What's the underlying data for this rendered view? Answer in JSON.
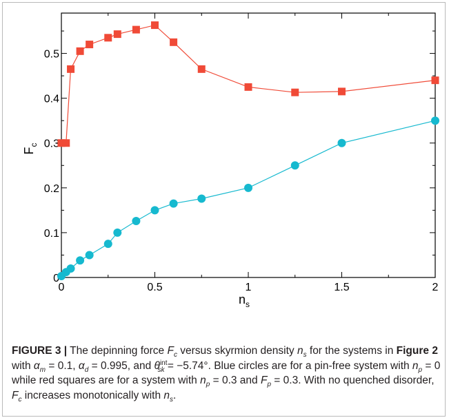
{
  "chart_data": {
    "type": "scatter",
    "xlabel": "n",
    "xlabel_sub": "s",
    "ylabel": "F",
    "ylabel_sub": "c",
    "xlim": [
      0,
      2
    ],
    "ylim": [
      0,
      0.59
    ],
    "x_ticks": [
      "0",
      "0.5",
      "1",
      "1.5",
      "2"
    ],
    "y_ticks": [
      "0",
      "0.1",
      "0.2",
      "0.3",
      "0.4",
      "0.5"
    ],
    "grid": false,
    "legend": "none",
    "series": [
      {
        "marker": "square",
        "color": "#f04a37",
        "x": [
          0,
          0.025,
          0.05,
          0.1,
          0.15,
          0.25,
          0.3,
          0.4,
          0.5,
          0.6,
          0.75,
          1.0,
          1.25,
          1.5,
          2.0
        ],
        "y": [
          0.3,
          0.3,
          0.465,
          0.505,
          0.52,
          0.535,
          0.543,
          0.553,
          0.563,
          0.525,
          0.465,
          0.425,
          0.413,
          0.415,
          0.44
        ]
      },
      {
        "marker": "circle",
        "color": "#16b9cf",
        "x": [
          0,
          0.025,
          0.05,
          0.1,
          0.15,
          0.25,
          0.3,
          0.4,
          0.5,
          0.6,
          0.75,
          1.0,
          1.25,
          1.5,
          2.0
        ],
        "y": [
          0.003,
          0.012,
          0.02,
          0.038,
          0.05,
          0.075,
          0.1,
          0.126,
          0.15,
          0.165,
          0.176,
          0.2,
          0.25,
          0.3,
          0.35
        ]
      }
    ]
  },
  "caption": {
    "label": "FIGURE 3 |",
    "t1": " The depinning force ",
    "Fc_main": "F",
    "Fc_sub": "c",
    "t2": " versus skyrmion density ",
    "ns_main": "n",
    "ns_sub": "s",
    "t3": " for the systems in ",
    "fig_ref": "Figure 2",
    "t4": " with ",
    "am_main": "α",
    "am_sub": "m",
    "t5": " = 0.1, ",
    "ad_main": "α",
    "ad_sub": "d",
    "t6": " = 0.995, and ",
    "th_main": "θ",
    "th_sup": "int",
    "th_sub": "sk",
    "t7": " = −5.74°. Blue circles are for a pin-free system with ",
    "np_main": "n",
    "np_sub": "p",
    "t8": " = 0 while red squares are for a system with ",
    "np2_main": "n",
    "np2_sub": "p",
    "t9": " = 0.3 and ",
    "Fp_main": "F",
    "Fp_sub": "p",
    "t10": " = 0.3. With no quenched disorder, ",
    "Fc2_main": "F",
    "Fc2_sub": "c",
    "t11": " increases monotonically with ",
    "ns2_main": "n",
    "ns2_sub": "s",
    "t12": "."
  }
}
